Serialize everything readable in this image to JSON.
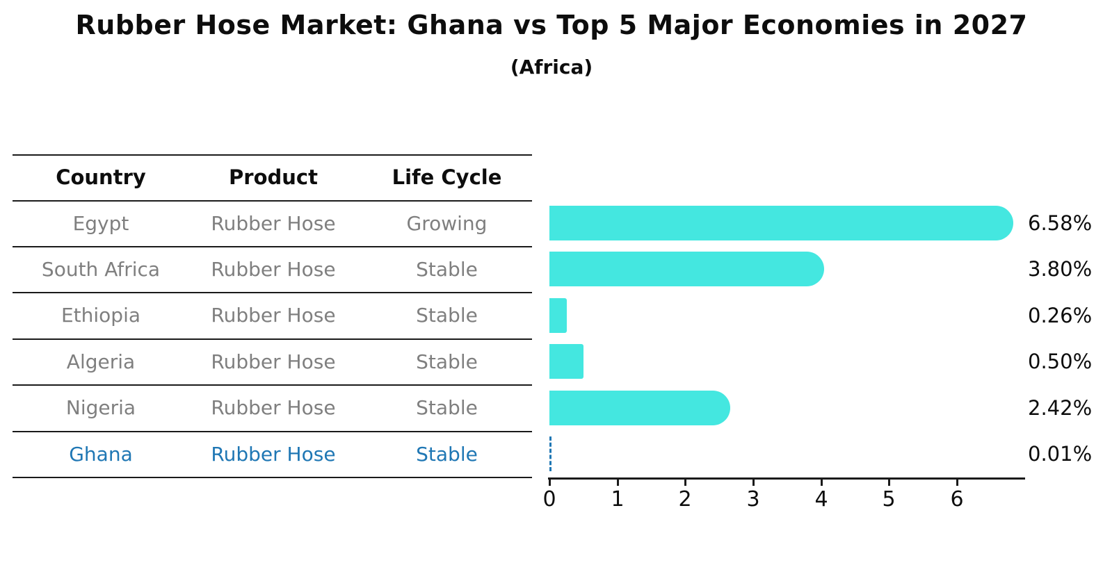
{
  "header": {
    "title": "Rubber Hose Market: Ghana vs Top 5 Major Economies in 2027",
    "subtitle": "(Africa)"
  },
  "table": {
    "columns": [
      "Country",
      "Product",
      "Life Cycle"
    ],
    "rows": [
      {
        "country": "Egypt",
        "product": "Rubber Hose",
        "life_cycle": "Growing",
        "highlighted": false
      },
      {
        "country": "South Africa",
        "product": "Rubber Hose",
        "life_cycle": "Stable",
        "highlighted": false
      },
      {
        "country": "Ethiopia",
        "product": "Rubber Hose",
        "life_cycle": "Stable",
        "highlighted": false
      },
      {
        "country": "Algeria",
        "product": "Rubber Hose",
        "life_cycle": "Stable",
        "highlighted": false
      },
      {
        "country": "Nigeria",
        "product": "Rubber Hose",
        "life_cycle": "Stable",
        "highlighted": false
      },
      {
        "country": "Ghana",
        "product": "Rubber Hose",
        "life_cycle": "Stable",
        "highlighted": true
      }
    ]
  },
  "chart_data": {
    "type": "bar",
    "orientation": "horizontal",
    "title": "Rubber Hose Market: Ghana vs Top 5 Major Economies in 2027",
    "subtitle": "(Africa)",
    "categories": [
      "Egypt",
      "South Africa",
      "Ethiopia",
      "Algeria",
      "Nigeria",
      "Ghana"
    ],
    "values": [
      6.58,
      3.8,
      0.26,
      0.5,
      2.42,
      0.01
    ],
    "value_labels": [
      "6.58%",
      "3.80%",
      "0.26%",
      "0.50%",
      "2.42%",
      "0.01%"
    ],
    "xlabel": "",
    "ylabel": "",
    "xlim": [
      0,
      7
    ],
    "xticks": [
      "0",
      "1",
      "2",
      "3",
      "4",
      "5",
      "6"
    ],
    "grid": false,
    "legend": "none",
    "bar_color": "#44e7e0",
    "highlight_color": "#1f77b4",
    "highlight_category": "Ghana",
    "highlight_style": "dashed-outline-bar"
  }
}
